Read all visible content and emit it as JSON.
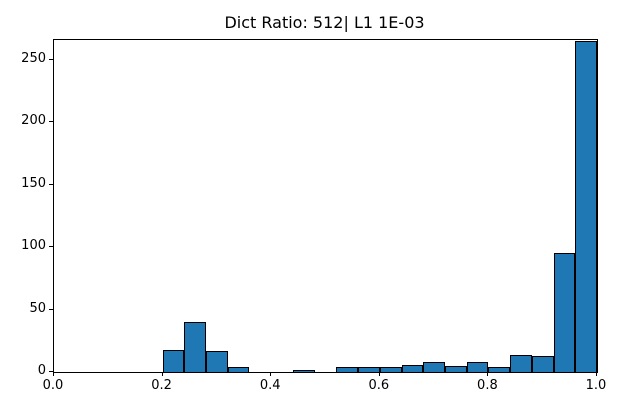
{
  "chart_data": {
    "type": "bar",
    "subtype": "histogram",
    "title": "Dict Ratio: 512| L1 1E-03",
    "xlabel": "",
    "ylabel": "",
    "bin_start": 0.2,
    "bin_width": 0.04,
    "bin_edges": [
      0.2,
      0.24,
      0.28,
      0.32,
      0.36,
      0.4,
      0.44,
      0.48,
      0.52,
      0.56,
      0.6,
      0.64,
      0.68,
      0.72,
      0.76,
      0.8,
      0.84,
      0.88,
      0.92,
      0.96,
      1.0
    ],
    "counts": [
      18,
      40,
      17,
      4,
      0,
      0,
      2,
      0,
      4,
      4,
      4,
      6,
      8,
      5,
      8,
      4,
      14,
      13,
      95,
      265
    ],
    "xlim": [
      0.0,
      1.0
    ],
    "ylim": [
      0,
      266
    ],
    "xticks": [
      0.0,
      0.2,
      0.4,
      0.6,
      0.8,
      1.0
    ],
    "xtick_labels": [
      "0.0",
      "0.2",
      "0.4",
      "0.6",
      "0.8",
      "1.0"
    ],
    "yticks": [
      0,
      50,
      100,
      150,
      200,
      250
    ],
    "ytick_labels": [
      "0",
      "50",
      "100",
      "150",
      "200",
      "250"
    ],
    "grid": false,
    "legend_position": "none",
    "bar_color": "#1f77b4",
    "bar_edge_color": "#000000",
    "axis_color": "#000000",
    "background_color": "#ffffff"
  }
}
